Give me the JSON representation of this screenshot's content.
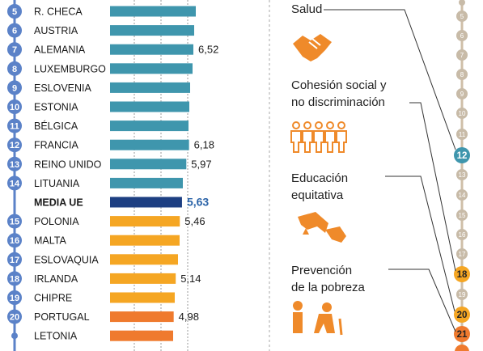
{
  "colors": {
    "teal": "#3f96ad",
    "navy": "#1d3f82",
    "amber": "#f5a623",
    "orange": "#ef7a2e",
    "rank_blue": "#5b82c8",
    "highlight_value": "#2a63a8",
    "timeline": "#cfbfa8",
    "pill_grey": "#c8bba8",
    "icon_orange": "#ef8a2a"
  },
  "chart_data": {
    "type": "bar",
    "orientation": "horizontal",
    "rows": [
      {
        "rank": "5",
        "country": "R. CHECA",
        "value": null,
        "color": "teal"
      },
      {
        "rank": "6",
        "country": "AUSTRIA",
        "value": null,
        "color": "teal"
      },
      {
        "rank": "7",
        "country": "ALEMANIA",
        "value": 6.52,
        "label": "6,52",
        "color": "teal"
      },
      {
        "rank": "8",
        "country": "LUXEMBURGO",
        "value": null,
        "color": "teal"
      },
      {
        "rank": "9",
        "country": "ESLOVENIA",
        "value": null,
        "color": "teal"
      },
      {
        "rank": "10",
        "country": "ESTONIA",
        "value": null,
        "color": "teal"
      },
      {
        "rank": "11",
        "country": "BÉLGICA",
        "value": null,
        "color": "teal"
      },
      {
        "rank": "12",
        "country": "FRANCIA",
        "value": 6.18,
        "label": "6,18",
        "color": "teal"
      },
      {
        "rank": "13",
        "country": "REINO UNIDO",
        "value": 5.97,
        "label": "5,97",
        "color": "teal"
      },
      {
        "rank": "14",
        "country": "LITUANIA",
        "value": null,
        "color": "teal"
      },
      {
        "rank": "",
        "country": "MEDIA UE",
        "value": 5.63,
        "label": "5,63",
        "color": "navy",
        "highlight": true
      },
      {
        "rank": "15",
        "country": "POLONIA",
        "value": 5.46,
        "label": "5,46",
        "color": "amber"
      },
      {
        "rank": "16",
        "country": "MALTA",
        "value": null,
        "color": "amber"
      },
      {
        "rank": "17",
        "country": "ESLOVAQUIA",
        "value": null,
        "color": "amber"
      },
      {
        "rank": "18",
        "country": "IRLANDA",
        "value": 5.14,
        "label": "5,14",
        "color": "amber"
      },
      {
        "rank": "19",
        "country": "CHIPRE",
        "value": null,
        "color": "amber"
      },
      {
        "rank": "20",
        "country": "PORTUGAL",
        "value": 4.98,
        "label": "4,98",
        "color": "orange"
      },
      {
        "rank": "",
        "country": "LETONIA",
        "value": null,
        "color": "orange"
      }
    ]
  },
  "topics": [
    {
      "icon": "health-icon",
      "lines": [
        "Salud"
      ]
    },
    {
      "icon": "handshake-icon",
      "lines": [
        "Cohesión social y",
        "no discriminación"
      ]
    },
    {
      "icon": "people-group-icon",
      "lines": [
        "Educación",
        "equitativa"
      ]
    },
    {
      "icon": "helping-hand-icon",
      "lines": [
        "Prevención",
        "de la pobreza"
      ]
    },
    {
      "icon": "elderly-people-icon",
      "lines": []
    }
  ],
  "timeline": {
    "small": [
      "5",
      "6",
      "7",
      "8",
      "9",
      "10",
      "11",
      "13",
      "14",
      "15",
      "16",
      "17",
      "19"
    ],
    "big": [
      {
        "label": "12",
        "color": "#3f96ad",
        "text": "white"
      },
      {
        "label": "18",
        "color": "#f5a623",
        "text": "dark"
      },
      {
        "label": "20",
        "color": "#f5a623",
        "text": "dark"
      },
      {
        "label": "21",
        "color": "#ef7a2e",
        "text": "dark"
      }
    ]
  }
}
